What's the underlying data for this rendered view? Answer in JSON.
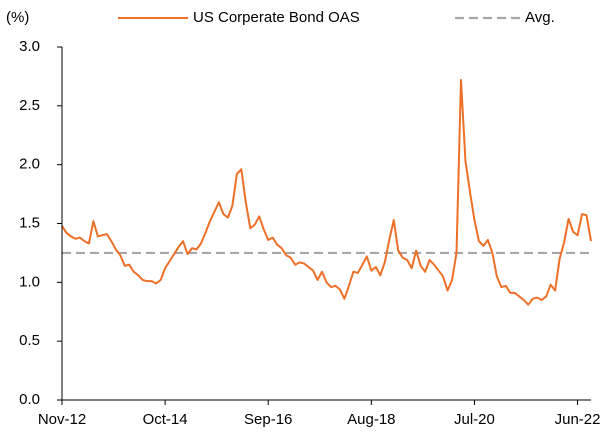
{
  "chart_data": {
    "type": "line",
    "y_unit_label": "(%)",
    "categories": [
      "Nov-12",
      null,
      null,
      null,
      null,
      null,
      null,
      null,
      null,
      null,
      null,
      null,
      null,
      null,
      null,
      null,
      null,
      null,
      null,
      null,
      null,
      null,
      null,
      "Oct-14",
      null,
      null,
      null,
      null,
      null,
      null,
      null,
      null,
      null,
      null,
      null,
      null,
      null,
      null,
      null,
      null,
      null,
      null,
      null,
      null,
      null,
      null,
      "Sep-16",
      null,
      null,
      null,
      null,
      null,
      null,
      null,
      null,
      null,
      null,
      null,
      null,
      null,
      null,
      null,
      null,
      null,
      null,
      null,
      null,
      null,
      null,
      "Aug-18",
      null,
      null,
      null,
      null,
      null,
      null,
      null,
      null,
      null,
      null,
      null,
      null,
      null,
      null,
      null,
      null,
      null,
      null,
      null,
      null,
      null,
      null,
      "Jul-20",
      null,
      null,
      null,
      null,
      null,
      null,
      null,
      null,
      null,
      null,
      null,
      null,
      null,
      null,
      null,
      null,
      null,
      null,
      null,
      null,
      null,
      null,
      "Jun-22",
      null,
      null,
      null
    ],
    "series": [
      {
        "name": "US Corperate Bond OAS",
        "color": "#ed7028",
        "values": [
          1.48,
          1.42,
          1.39,
          1.37,
          1.38,
          1.35,
          1.33,
          1.52,
          1.39,
          1.4,
          1.41,
          1.35,
          1.28,
          1.23,
          1.14,
          1.15,
          1.09,
          1.06,
          1.02,
          1.01,
          1.01,
          0.99,
          1.02,
          1.12,
          1.18,
          1.24,
          1.3,
          1.35,
          1.24,
          1.29,
          1.28,
          1.33,
          1.42,
          1.52,
          1.6,
          1.68,
          1.58,
          1.55,
          1.65,
          1.92,
          1.96,
          1.68,
          1.46,
          1.49,
          1.56,
          1.45,
          1.36,
          1.38,
          1.32,
          1.29,
          1.23,
          1.21,
          1.15,
          1.17,
          1.16,
          1.13,
          1.1,
          1.02,
          1.09,
          1.0,
          0.96,
          0.97,
          0.94,
          0.86,
          0.97,
          1.09,
          1.08,
          1.15,
          1.22,
          1.1,
          1.13,
          1.06,
          1.17,
          1.36,
          1.53,
          1.27,
          1.21,
          1.19,
          1.12,
          1.27,
          1.14,
          1.09,
          1.19,
          1.15,
          1.1,
          1.05,
          0.93,
          1.02,
          1.25,
          2.72,
          2.03,
          1.77,
          1.53,
          1.35,
          1.31,
          1.36,
          1.25,
          1.05,
          0.96,
          0.97,
          0.91,
          0.91,
          0.88,
          0.85,
          0.81,
          0.86,
          0.87,
          0.85,
          0.88,
          0.98,
          0.93,
          1.2,
          1.34,
          1.54,
          1.43,
          1.4,
          1.58,
          1.57,
          1.35
        ]
      }
    ],
    "reference_lines": [
      {
        "name": "Avg.",
        "value": 1.25,
        "color": "#a6a6a6",
        "dashed": true
      }
    ],
    "ylim": [
      0,
      3
    ],
    "yticks": [
      {
        "value": 0,
        "label": "0.0"
      },
      0.5,
      {
        "value": 1,
        "label": "1.0"
      },
      1.5,
      {
        "value": 2,
        "label": "2.0"
      },
      2.5,
      {
        "value": 3,
        "label": "3.0"
      }
    ],
    "grid": false
  }
}
